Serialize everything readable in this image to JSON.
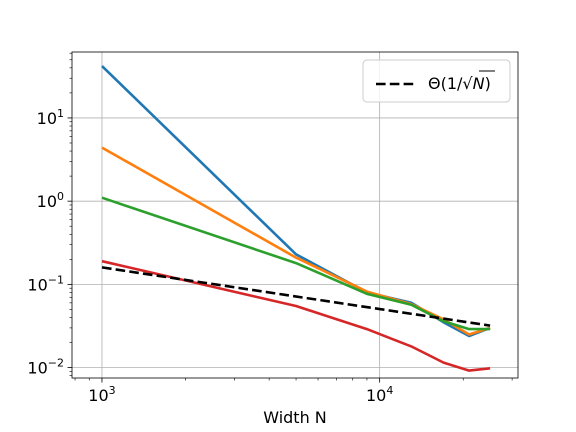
{
  "chart_data": {
    "type": "line",
    "title": "",
    "xlabel": "Width N",
    "ylabel": "",
    "x_scale": "log",
    "y_scale": "log",
    "xlim": [
      780,
      31500
    ],
    "ylim": [
      0.0075,
      62
    ],
    "grid": true,
    "legend_placement": "top-right",
    "x_ticks": [
      {
        "value": 1000,
        "base": "10",
        "exp": "3"
      },
      {
        "value": 10000,
        "base": "10",
        "exp": "4"
      }
    ],
    "y_ticks": [
      {
        "value": 0.01,
        "base": "10",
        "exp": "−2"
      },
      {
        "value": 0.1,
        "base": "10",
        "exp": "−1"
      },
      {
        "value": 1,
        "base": "10",
        "exp": "0"
      },
      {
        "value": 10,
        "base": "10",
        "exp": "1"
      }
    ],
    "series": [
      {
        "color": "#1f77b4",
        "style": "solid",
        "x": [
          1000,
          5000,
          9000,
          13000,
          17000,
          21000,
          25000
        ],
        "y": [
          42,
          0.23,
          0.08,
          0.06,
          0.035,
          0.024,
          0.03
        ]
      },
      {
        "color": "#ff7f0e",
        "style": "solid",
        "x": [
          1000,
          5000,
          9000,
          13000,
          17000,
          21000,
          25000
        ],
        "y": [
          4.4,
          0.21,
          0.082,
          0.058,
          0.038,
          0.025,
          0.03
        ]
      },
      {
        "color": "#2ca02c",
        "style": "solid",
        "x": [
          1000,
          5000,
          9000,
          13000,
          17000,
          21000,
          25000
        ],
        "y": [
          1.1,
          0.18,
          0.077,
          0.057,
          0.036,
          0.029,
          0.029
        ]
      },
      {
        "color": "#d62728",
        "style": "solid",
        "x": [
          1000,
          5000,
          9000,
          13000,
          17000,
          21000,
          25000
        ],
        "y": [
          0.19,
          0.055,
          0.029,
          0.018,
          0.0115,
          0.0092,
          0.0098
        ]
      },
      {
        "name": "Θ(1/√N)",
        "legend_prefix": "Θ(1/",
        "legend_radical": "N",
        "legend_suffix": ")",
        "color": "#000000",
        "style": "dashed",
        "x": [
          1000,
          25000
        ],
        "y": [
          0.16,
          0.032
        ]
      }
    ]
  }
}
